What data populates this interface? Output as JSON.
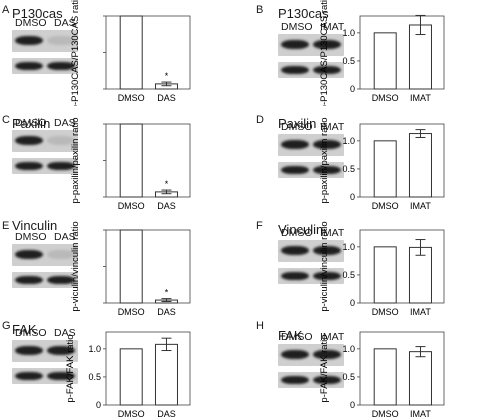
{
  "panels": [
    {
      "letter": "A",
      "title": "P130cas",
      "lanes": [
        "DMSO",
        "DAS"
      ],
      "blot": "das",
      "chart_data": {
        "type": "bar",
        "categories": [
          "DMSO",
          "DAS"
        ],
        "values": [
          1.0,
          0.07
        ],
        "errors": [
          0,
          0.025
        ],
        "significance": [
          "",
          "*"
        ],
        "ylabel": "p-P130CAS/P130CAS ratio",
        "ylim": [
          0,
          1.0
        ],
        "yticks": []
      }
    },
    {
      "letter": "B",
      "title": "P130cas",
      "lanes": [
        "DMSO",
        "IMAT"
      ],
      "blot": "same",
      "chart_data": {
        "type": "bar",
        "categories": [
          "DMSO",
          "IMAT"
        ],
        "values": [
          1.0,
          1.14
        ],
        "errors": [
          0,
          0.17
        ],
        "significance": [
          "",
          ""
        ],
        "ylabel": "p-P130CAS/P130CAS ratio",
        "ylim": [
          0,
          1.3
        ],
        "yticks": [
          "0",
          "0.5",
          "1.0"
        ]
      }
    },
    {
      "letter": "C",
      "title": "Paxilin",
      "lanes": [
        "DMSO",
        "DAS"
      ],
      "blot": "das",
      "chart_data": {
        "type": "bar",
        "categories": [
          "DMSO",
          "DAS"
        ],
        "values": [
          1.0,
          0.07
        ],
        "errors": [
          0,
          0.025
        ],
        "significance": [
          "",
          "*"
        ],
        "ylabel": "p-paxilin/paxilin ratio",
        "ylim": [
          0,
          1.0
        ],
        "yticks": []
      }
    },
    {
      "letter": "D",
      "title": "Paxilin",
      "lanes": [
        "DMSO",
        "IMAT"
      ],
      "blot": "same",
      "chart_data": {
        "type": "bar",
        "categories": [
          "DMSO",
          "IMAT"
        ],
        "values": [
          1.0,
          1.13
        ],
        "errors": [
          0,
          0.07
        ],
        "significance": [
          "",
          ""
        ],
        "ylabel": "p-paxilin/paxilin ratio",
        "ylim": [
          0,
          1.3
        ],
        "yticks": [
          "0",
          "0.5",
          "1.0"
        ]
      }
    },
    {
      "letter": "E",
      "title": "Vinculin",
      "lanes": [
        "DMSO",
        "DAS"
      ],
      "blot": "das",
      "chart_data": {
        "type": "bar",
        "categories": [
          "DMSO",
          "DAS"
        ],
        "values": [
          1.0,
          0.04
        ],
        "errors": [
          0,
          0.02
        ],
        "significance": [
          "",
          "*"
        ],
        "ylabel": "p-viculin/vinculin ratio",
        "ylim": [
          0,
          1.0
        ],
        "yticks": []
      }
    },
    {
      "letter": "F",
      "title": "Vinculin",
      "lanes": [
        "DMSO",
        "IMAT"
      ],
      "blot": "same",
      "chart_data": {
        "type": "bar",
        "categories": [
          "DMSO",
          "IMAT"
        ],
        "values": [
          1.0,
          0.99
        ],
        "errors": [
          0,
          0.14
        ],
        "significance": [
          "",
          ""
        ],
        "ylabel": "p-viculin/vinculin ratio",
        "ylim": [
          0,
          1.3
        ],
        "yticks": [
          "0",
          "0.5",
          "1.0"
        ]
      }
    },
    {
      "letter": "G",
      "title": "FAK",
      "lanes": [
        "DMSO",
        "DAS"
      ],
      "blot": "same",
      "chart_data": {
        "type": "bar",
        "categories": [
          "DMSO",
          "DAS"
        ],
        "values": [
          1.0,
          1.08
        ],
        "errors": [
          0,
          0.11
        ],
        "significance": [
          "",
          ""
        ],
        "ylabel": "p-FAK/FAK ratio",
        "ylim": [
          0,
          1.3
        ],
        "yticks": [
          "0",
          "0.5",
          "1.0"
        ]
      }
    },
    {
      "letter": "H",
      "title": "FAK",
      "lanes": [
        "DMSO",
        "IMAT"
      ],
      "blot": "same",
      "chart_data": {
        "type": "bar",
        "categories": [
          "DMSO",
          "IMAT"
        ],
        "values": [
          1.0,
          0.95
        ],
        "errors": [
          0,
          0.09
        ],
        "significance": [
          "",
          ""
        ],
        "ylabel": "p-FAK/FAK ratio",
        "ylim": [
          0,
          1.3
        ],
        "yticks": [
          "0",
          "0.5",
          "1.0"
        ]
      }
    }
  ],
  "colors": {
    "bar_fill": "#ffffff",
    "bar_stroke": "#333333",
    "band_dark": "#1f1f1f",
    "band_faint": "#b9b9b9",
    "blot_bg": "#cfcfcf"
  }
}
